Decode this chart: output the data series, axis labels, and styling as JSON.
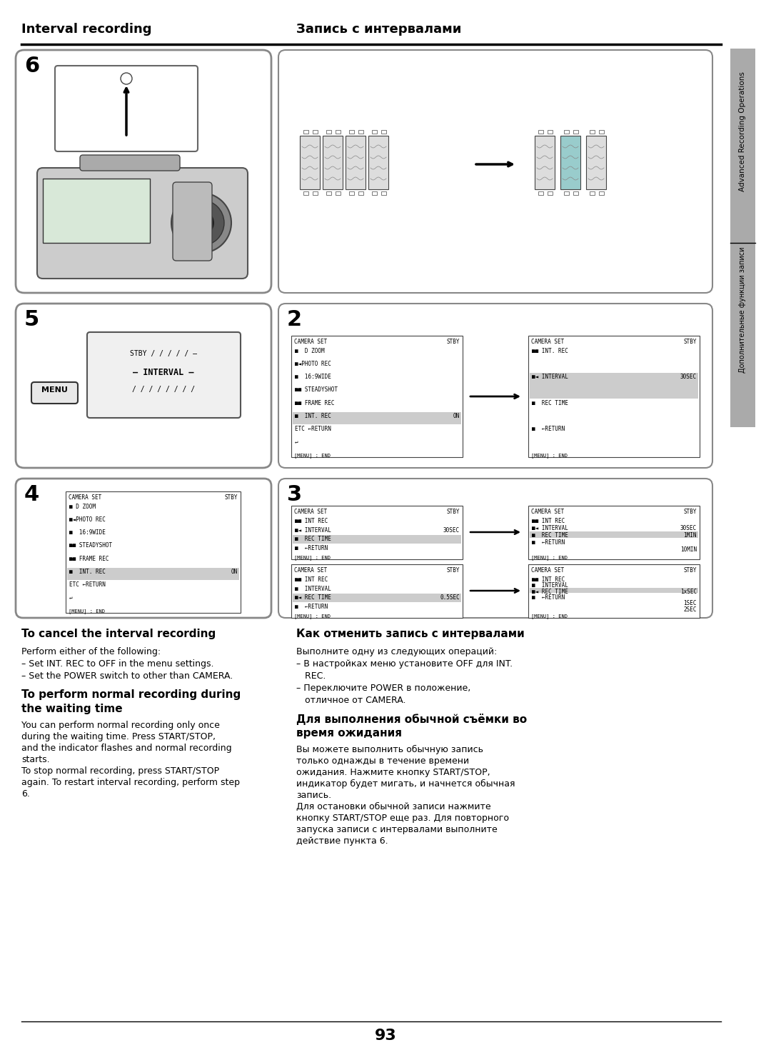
{
  "title_left": "Interval recording",
  "title_right": "Запись с интервалами",
  "page_number": "93",
  "bg_color": "#ffffff",
  "step6_label": "6",
  "step5_label": "5",
  "step4_label": "4",
  "step2_label": "2",
  "step3_label": "3",
  "cancel_title_en": "To cancel the interval recording",
  "cancel_body_en": [
    "Perform either of the following:",
    "– Set INT. REC to OFF in the menu settings.",
    "– Set the POWER switch to other than CAMERA."
  ],
  "normal_title_en": "To perform normal recording during\nthe waiting time",
  "normal_body_en": [
    "You can perform normal recording only once",
    "during the waiting time. Press START/STOP,",
    "and the indicator flashes and normal recording",
    "starts.",
    "To stop normal recording, press START/STOP",
    "again. To restart interval recording, perform step",
    "6."
  ],
  "cancel_title_ru": "Как отменить запись с интервалами",
  "cancel_body_ru": [
    "Выполните одну из следующих операций:",
    "– В настройках меню установите OFF для INT.",
    "   REC.",
    "– Переключите POWER в положение,",
    "   отличное от CAMERA."
  ],
  "normal_title_ru": "Для выполнения обычной съёмки во\nвремя ожидания",
  "normal_body_ru": [
    "Вы можете выполнить обычную запись",
    "только однажды в течение времени",
    "ожидания. Нажмите кнопку START/STOP,",
    "индикатор будет мигать, и начнется обычная",
    "запись.",
    "Для остановки обычной записи нажмите",
    "кнопку START/STOP еще раз. Для повторного",
    "запуска записи с интервалами выполните",
    "действие пункта 6."
  ],
  "sidebar_text": "Advanced Recording Operations",
  "sidebar_text_ru": "Дополнительные функции записи"
}
